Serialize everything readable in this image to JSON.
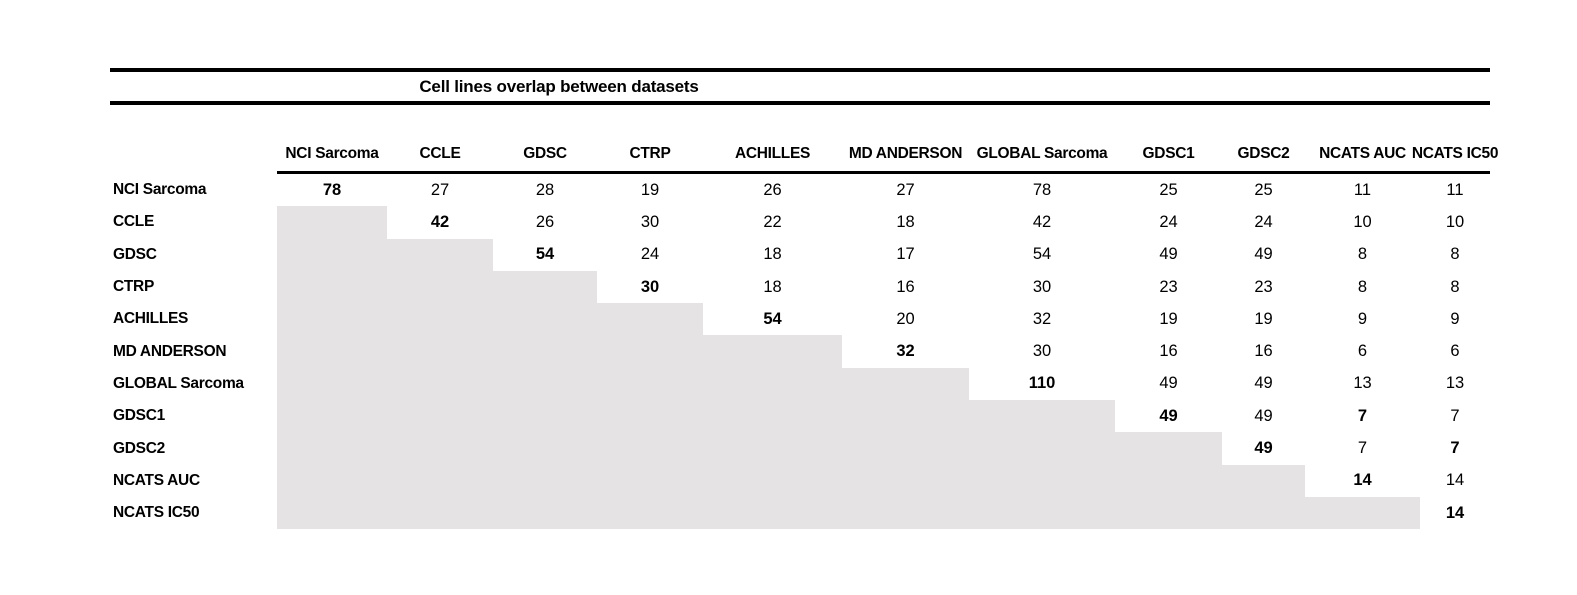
{
  "title": "Cell lines overlap between datasets",
  "colors": {
    "shaded_cell": "#e5e3e3",
    "rule": "#000000",
    "text": "#000000"
  },
  "matrix": {
    "columns": [
      "NCI Sarcoma",
      "CCLE",
      "GDSC",
      "CTRP",
      "ACHILLES",
      "MD ANDERSON",
      "GLOBAL Sarcoma",
      "GDSC1",
      "GDSC2",
      "NCATS AUC",
      "NCATS IC50"
    ],
    "rows": [
      {
        "label": "NCI Sarcoma",
        "cells": [
          {
            "v": "78",
            "bold": true
          },
          {
            "v": "27"
          },
          {
            "v": "28"
          },
          {
            "v": "19"
          },
          {
            "v": "26"
          },
          {
            "v": "27"
          },
          {
            "v": "78"
          },
          {
            "v": "25"
          },
          {
            "v": "25"
          },
          {
            "v": "11"
          },
          {
            "v": "11"
          }
        ]
      },
      {
        "label": "CCLE",
        "cells": [
          null,
          {
            "v": "42",
            "bold": true
          },
          {
            "v": "26"
          },
          {
            "v": "30"
          },
          {
            "v": "22"
          },
          {
            "v": "18"
          },
          {
            "v": "42"
          },
          {
            "v": "24"
          },
          {
            "v": "24"
          },
          {
            "v": "10"
          },
          {
            "v": "10"
          }
        ]
      },
      {
        "label": "GDSC",
        "cells": [
          null,
          null,
          {
            "v": "54",
            "bold": true
          },
          {
            "v": "24"
          },
          {
            "v": "18"
          },
          {
            "v": "17"
          },
          {
            "v": "54"
          },
          {
            "v": "49"
          },
          {
            "v": "49"
          },
          {
            "v": "8"
          },
          {
            "v": "8"
          }
        ]
      },
      {
        "label": "CTRP",
        "cells": [
          null,
          null,
          null,
          {
            "v": "30",
            "bold": true
          },
          {
            "v": "18"
          },
          {
            "v": "16"
          },
          {
            "v": "30"
          },
          {
            "v": "23"
          },
          {
            "v": "23"
          },
          {
            "v": "8"
          },
          {
            "v": "8"
          }
        ]
      },
      {
        "label": "ACHILLES",
        "cells": [
          null,
          null,
          null,
          null,
          {
            "v": "54",
            "bold": true
          },
          {
            "v": "20"
          },
          {
            "v": "32"
          },
          {
            "v": "19"
          },
          {
            "v": "19"
          },
          {
            "v": "9"
          },
          {
            "v": "9"
          }
        ]
      },
      {
        "label": "MD ANDERSON",
        "cells": [
          null,
          null,
          null,
          null,
          null,
          {
            "v": "32",
            "bold": true
          },
          {
            "v": "30"
          },
          {
            "v": "16"
          },
          {
            "v": "16"
          },
          {
            "v": "6"
          },
          {
            "v": "6"
          }
        ]
      },
      {
        "label": "GLOBAL Sarcoma",
        "cells": [
          null,
          null,
          null,
          null,
          null,
          null,
          {
            "v": "110",
            "bold": true
          },
          {
            "v": "49"
          },
          {
            "v": "49"
          },
          {
            "v": "13"
          },
          {
            "v": "13"
          }
        ]
      },
      {
        "label": "GDSC1",
        "cells": [
          null,
          null,
          null,
          null,
          null,
          null,
          null,
          {
            "v": "49",
            "bold": true
          },
          {
            "v": "49"
          },
          {
            "v": "7",
            "bold": true
          },
          {
            "v": "7"
          }
        ]
      },
      {
        "label": "GDSC2",
        "cells": [
          null,
          null,
          null,
          null,
          null,
          null,
          null,
          null,
          {
            "v": "49",
            "bold": true
          },
          {
            "v": "7"
          },
          {
            "v": "7",
            "bold": true
          }
        ]
      },
      {
        "label": "NCATS AUC",
        "cells": [
          null,
          null,
          null,
          null,
          null,
          null,
          null,
          null,
          null,
          {
            "v": "14",
            "bold": true
          },
          {
            "v": "14"
          }
        ]
      },
      {
        "label": "NCATS IC50",
        "cells": [
          null,
          null,
          null,
          null,
          null,
          null,
          null,
          null,
          null,
          null,
          {
            "v": "14",
            "bold": true
          }
        ]
      }
    ]
  }
}
